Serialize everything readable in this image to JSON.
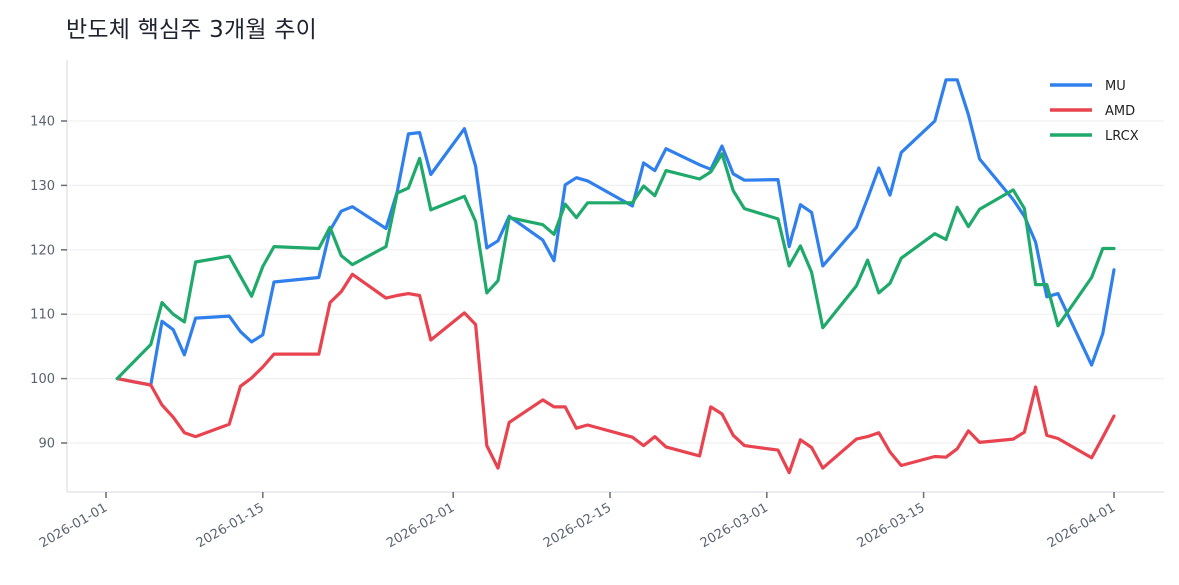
{
  "title": "반도체 핵심주 3개월 추이",
  "colors": {
    "MU": "#2f80ed",
    "AMD": "#e8434f",
    "LRCX": "#1faa6b",
    "grid": "#f0f0f0",
    "spine": "#e6e6ea",
    "tick": "#666e7a"
  },
  "chart_data": {
    "type": "line",
    "title": "반도체 핵심주 3개월 추이",
    "xlabel": "",
    "ylabel": "",
    "ylim": [
      83,
      149
    ],
    "xlim": [
      "2025-12-29",
      "2026-04-05"
    ],
    "yticks": [
      90,
      100,
      110,
      120,
      130,
      140
    ],
    "xticks": [
      "2026-01-01",
      "2026-01-15",
      "2026-02-01",
      "2026-02-15",
      "2026-03-01",
      "2026-03-15",
      "2026-04-01"
    ],
    "grid": true,
    "legend_position": "upper right",
    "x": [
      "2026-01-02",
      "2026-01-05",
      "2026-01-06",
      "2026-01-07",
      "2026-01-08",
      "2026-01-09",
      "2026-01-12",
      "2026-01-13",
      "2026-01-14",
      "2026-01-15",
      "2026-01-16",
      "2026-01-20",
      "2026-01-21",
      "2026-01-22",
      "2026-01-23",
      "2026-01-26",
      "2026-01-27",
      "2026-01-28",
      "2026-01-29",
      "2026-01-30",
      "2026-02-02",
      "2026-02-03",
      "2026-02-04",
      "2026-02-05",
      "2026-02-06",
      "2026-02-09",
      "2026-02-10",
      "2026-02-11",
      "2026-02-12",
      "2026-02-13",
      "2026-02-17",
      "2026-02-18",
      "2026-02-19",
      "2026-02-20",
      "2026-02-23",
      "2026-02-24",
      "2026-02-25",
      "2026-02-26",
      "2026-02-27",
      "2026-03-02",
      "2026-03-03",
      "2026-03-04",
      "2026-03-05",
      "2026-03-06",
      "2026-03-09",
      "2026-03-10",
      "2026-03-11",
      "2026-03-12",
      "2026-03-13",
      "2026-03-16",
      "2026-03-17",
      "2026-03-18",
      "2026-03-19",
      "2026-03-20",
      "2026-03-23",
      "2026-03-24",
      "2026-03-25",
      "2026-03-26",
      "2026-03-27",
      "2026-03-30",
      "2026-03-31",
      "2026-04-01"
    ],
    "series": [
      {
        "name": "MU",
        "color": "#2f80ed",
        "values": [
          100.0,
          99.0,
          108.9,
          107.6,
          103.7,
          109.4,
          109.7,
          107.3,
          105.7,
          106.8,
          115.0,
          115.7,
          123.0,
          126.0,
          126.7,
          123.3,
          129.0,
          138.0,
          138.2,
          131.7,
          138.8,
          133.0,
          120.3,
          121.4,
          125.2,
          121.5,
          118.3,
          130.1,
          131.2,
          130.7,
          126.8,
          133.5,
          132.3,
          135.7,
          133.2,
          132.5,
          136.1,
          131.8,
          130.8,
          130.9,
          120.5,
          127.0,
          125.8,
          117.5,
          123.5,
          128.0,
          132.7,
          128.5,
          135.1,
          140.0,
          146.4,
          146.4,
          141.0,
          134.1,
          127.8,
          125.2,
          121.2,
          112.7,
          113.2,
          102.1,
          107.0,
          116.9
        ]
      },
      {
        "name": "AMD",
        "color": "#e8434f",
        "values": [
          100.0,
          99.0,
          95.9,
          94.0,
          91.6,
          91.0,
          92.9,
          98.8,
          100.1,
          101.8,
          103.8,
          103.8,
          111.8,
          113.5,
          116.2,
          112.5,
          112.9,
          113.2,
          112.9,
          106.0,
          110.2,
          108.4,
          89.6,
          86.1,
          93.2,
          96.7,
          95.6,
          95.6,
          92.3,
          92.8,
          90.9,
          89.6,
          91.0,
          89.4,
          88.0,
          95.6,
          94.5,
          91.2,
          89.6,
          88.9,
          85.4,
          90.5,
          89.3,
          86.1,
          90.6,
          91.0,
          91.6,
          88.6,
          86.5,
          87.9,
          87.8,
          89.1,
          91.9,
          90.1,
          90.6,
          91.7,
          98.7,
          91.2,
          90.7,
          87.7,
          90.9,
          94.2
        ]
      },
      {
        "name": "LRCX",
        "color": "#1faa6b",
        "values": [
          100.0,
          105.3,
          111.8,
          110.0,
          108.8,
          118.1,
          119.0,
          115.9,
          112.8,
          117.4,
          120.5,
          120.2,
          123.5,
          119.1,
          117.7,
          120.5,
          128.8,
          129.6,
          134.2,
          126.2,
          128.3,
          124.4,
          113.3,
          115.2,
          125.0,
          123.9,
          122.4,
          127.1,
          125.0,
          127.3,
          127.3,
          129.9,
          128.4,
          132.3,
          131.0,
          132.1,
          134.9,
          129.2,
          126.4,
          124.8,
          117.5,
          120.6,
          116.5,
          107.9,
          114.4,
          118.4,
          113.3,
          114.8,
          118.7,
          122.5,
          121.6,
          126.6,
          123.6,
          126.3,
          129.3,
          126.4,
          114.6,
          114.6,
          108.2,
          115.7,
          120.2,
          120.2
        ]
      }
    ]
  }
}
